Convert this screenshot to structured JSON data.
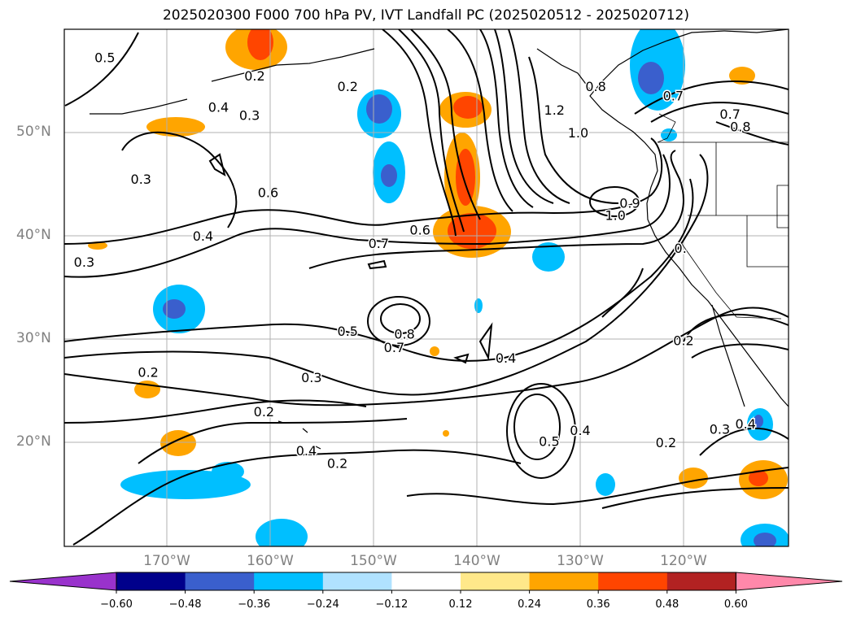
{
  "title": "2025020300 F000 700 hPa PV, IVT Landfall PC (2025020512 - 2025020712)",
  "map": {
    "lat_labels": [
      "50°N",
      "40°N",
      "30°N",
      "20°N"
    ],
    "lon_labels": [
      "170°W",
      "160°W",
      "150°W",
      "140°W",
      "130°W",
      "120°W"
    ],
    "lat_values": [
      50,
      40,
      30,
      20
    ],
    "lon_values": [
      -170,
      -160,
      -150,
      -140,
      -130,
      -120
    ],
    "grid": true,
    "contour_labels": [
      {
        "text": "0.5",
        "lon": -176,
        "lat": 57.3
      },
      {
        "text": "0.2",
        "lon": -161.5,
        "lat": 55.5
      },
      {
        "text": "0.2",
        "lon": -152.5,
        "lat": 54.5
      },
      {
        "text": "0.4",
        "lon": -165,
        "lat": 52.5
      },
      {
        "text": "0.3",
        "lon": -162,
        "lat": 51.7
      },
      {
        "text": "0.3",
        "lon": -172.5,
        "lat": 45.5
      },
      {
        "text": "0.6",
        "lon": -160.2,
        "lat": 44.2
      },
      {
        "text": "0.4",
        "lon": -166.5,
        "lat": 40
      },
      {
        "text": "0.3",
        "lon": -178,
        "lat": 37.5
      },
      {
        "text": "0.6",
        "lon": -145.5,
        "lat": 40.6
      },
      {
        "text": "0.7",
        "lon": -149.5,
        "lat": 39.3
      },
      {
        "text": "0.8",
        "lon": -128.5,
        "lat": 54.5
      },
      {
        "text": "1.2",
        "lon": -132.5,
        "lat": 52.2
      },
      {
        "text": "1.0",
        "lon": -130.2,
        "lat": 50
      },
      {
        "text": "0.7",
        "lon": -121,
        "lat": 53.6
      },
      {
        "text": "0.7",
        "lon": -115.5,
        "lat": 51.8
      },
      {
        "text": "0.8",
        "lon": -114.5,
        "lat": 50.6
      },
      {
        "text": "1.0",
        "lon": -126.6,
        "lat": 42
      },
      {
        "text": "0.9",
        "lon": -125.2,
        "lat": 43.2
      },
      {
        "text": "0.",
        "lon": -120.3,
        "lat": 38.8
      },
      {
        "text": "0.5",
        "lon": -152.5,
        "lat": 30.8
      },
      {
        "text": "0.8",
        "lon": -147,
        "lat": 30.5
      },
      {
        "text": "0.7",
        "lon": -148,
        "lat": 29.2
      },
      {
        "text": "0.4",
        "lon": -137.2,
        "lat": 28.2
      },
      {
        "text": "0.3",
        "lon": -156,
        "lat": 26.3
      },
      {
        "text": "0.2",
        "lon": -171.8,
        "lat": 26.8
      },
      {
        "text": "0.2",
        "lon": -160.6,
        "lat": 23
      },
      {
        "text": "0.4",
        "lon": -156.5,
        "lat": 19.2
      },
      {
        "text": "0.2",
        "lon": -153.5,
        "lat": 18
      },
      {
        "text": "0.5",
        "lon": -133,
        "lat": 20.1
      },
      {
        "text": "0.4",
        "lon": -130,
        "lat": 21.2
      },
      {
        "text": "0.2",
        "lon": -120,
        "lat": 29.9
      },
      {
        "text": "0.2",
        "lon": -121.7,
        "lat": 20
      },
      {
        "text": "0.3",
        "lon": -116.5,
        "lat": 21.3
      },
      {
        "text": "0.4",
        "lon": -114,
        "lat": 21.8
      }
    ]
  },
  "colorbar": {
    "tick_labels": [
      "−0.60",
      "−0.48",
      "−0.36",
      "−0.24",
      "−0.12",
      "0.12",
      "0.24",
      "0.36",
      "0.48",
      "0.60"
    ],
    "bounds": [
      -0.6,
      -0.48,
      -0.36,
      -0.24,
      -0.12,
      0.12,
      0.24,
      0.36,
      0.48,
      0.6
    ],
    "colors": [
      "#9932cc",
      "#00008b",
      "#3a5fcd",
      "#00bfff",
      "#b0e2ff",
      "#ffffff",
      "#ffe88a",
      "#ffa500",
      "#ff4500",
      "#b22222",
      "#ff88aa"
    ]
  }
}
